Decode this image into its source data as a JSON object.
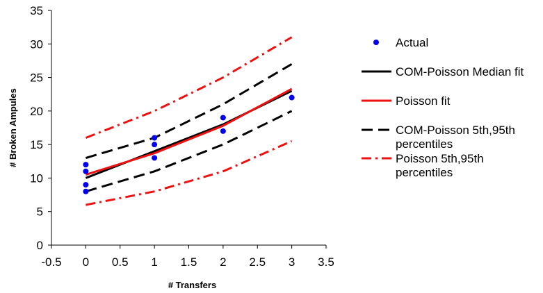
{
  "chart_data": {
    "type": "line",
    "title": "",
    "xlabel": "# Transfers",
    "ylabel": "# Broken Ampules",
    "xlim": [
      -0.5,
      3.5
    ],
    "ylim": [
      0,
      35
    ],
    "xticks": [
      "-0.5",
      "0",
      "0.5",
      "1",
      "1.5",
      "2",
      "2.5",
      "3",
      "3.5"
    ],
    "yticks": [
      "0",
      "5",
      "10",
      "15",
      "20",
      "25",
      "30",
      "35"
    ],
    "grid": false,
    "legend_position": "right",
    "series": [
      {
        "name": "Actual",
        "kind": "scatter",
        "color": "#0000ee",
        "points": [
          [
            0,
            8
          ],
          [
            0,
            9
          ],
          [
            0,
            11
          ],
          [
            0,
            12
          ],
          [
            1,
            13
          ],
          [
            1,
            15
          ],
          [
            1,
            16
          ],
          [
            2,
            17
          ],
          [
            2,
            19
          ],
          [
            3,
            22
          ]
        ]
      },
      {
        "name": "COM-Poisson Median fit",
        "kind": "line",
        "style": "solid",
        "color": "#000000",
        "points": [
          [
            0,
            10
          ],
          [
            1,
            14
          ],
          [
            2,
            18
          ],
          [
            3,
            23
          ]
        ]
      },
      {
        "name": "Poisson fit",
        "kind": "line",
        "style": "solid",
        "color": "#ee1111",
        "points": [
          [
            0,
            10.5
          ],
          [
            1,
            13.7
          ],
          [
            2,
            17.8
          ],
          [
            3,
            23.3
          ]
        ]
      },
      {
        "name": "COM-Poisson 5th,95th percentiles",
        "kind": "band",
        "style": "dashed",
        "color": "#000000",
        "lines": [
          [
            [
              0,
              8
            ],
            [
              1,
              11
            ],
            [
              2,
              15
            ],
            [
              3,
              20
            ]
          ],
          [
            [
              0,
              13
            ],
            [
              1,
              16
            ],
            [
              2,
              21
            ],
            [
              3,
              27
            ]
          ]
        ]
      },
      {
        "name": "Poisson 5th,95th percentiles",
        "kind": "band",
        "style": "dashdot",
        "color": "#ee1111",
        "lines": [
          [
            [
              0,
              6
            ],
            [
              1,
              8
            ],
            [
              2,
              11
            ],
            [
              3,
              15.5
            ]
          ],
          [
            [
              0,
              16
            ],
            [
              1,
              20
            ],
            [
              2,
              25
            ],
            [
              3,
              31
            ]
          ]
        ]
      }
    ]
  },
  "legend": {
    "items": [
      {
        "lines": [
          "Actual"
        ]
      },
      {
        "lines": [
          "COM-Poisson Median fit"
        ]
      },
      {
        "lines": [
          "Poisson fit"
        ]
      },
      {
        "lines": [
          "COM-Poisson 5th,95th",
          "percentiles"
        ]
      },
      {
        "lines": [
          "Poisson 5th,95th",
          "percentiles"
        ]
      }
    ]
  }
}
